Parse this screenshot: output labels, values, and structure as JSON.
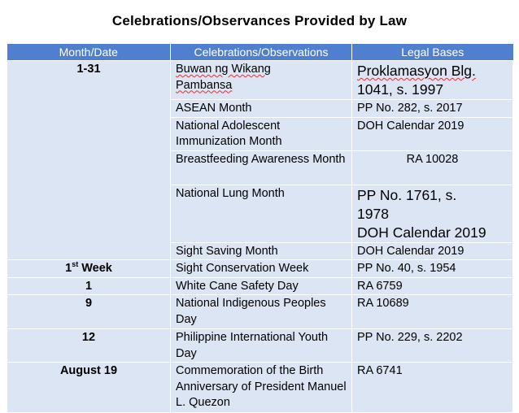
{
  "title": "Celebrations/Observances  Provided by Law",
  "headers": {
    "month_date": "Month/Date",
    "celebrations": "Celebrations/Observations",
    "legal_bases": "Legal Bases"
  },
  "rows": [
    {
      "date": "1-31",
      "celebration_line1": "Buwan ng Wikang",
      "celebration_line2": "Pambansa",
      "basis_line1": "Proklamasyon Blg.",
      "basis_line2": "1041, s. 1997"
    },
    {
      "celebration": "ASEAN Month",
      "basis": "PP No. 282, s. 2017"
    },
    {
      "celebration": "National Adolescent Immunization Month",
      "basis": "DOH Calendar 2019"
    },
    {
      "celebration": "Breastfeeding Awareness Month",
      "basis": "RA 10028"
    },
    {
      "celebration": "National Lung Month",
      "basis_line1": "PP No. 1761, s.",
      "basis_line2": "1978",
      "basis_line3": "DOH Calendar 2019"
    },
    {
      "celebration": "Sight Saving Month",
      "basis": "DOH Calendar 2019"
    },
    {
      "date_num": "1",
      "date_sup": "st",
      "date_rest": " Week",
      "celebration": "Sight Conservation Week",
      "basis": "PP No. 40, s. 1954"
    },
    {
      "date": "1",
      "celebration": "White Cane Safety Day",
      "basis": "RA 6759"
    },
    {
      "date": "9",
      "celebration": "National Indigenous Peoples Day",
      "basis": "RA 10689"
    },
    {
      "date": "12",
      "celebration": "Philippine International Youth Day",
      "basis": "PP No. 229, s. 2202"
    },
    {
      "date": "August 19",
      "celebration": "Commemoration of the Birth Anniversary of President Manuel L. Quezon",
      "basis": "RA 6741"
    }
  ],
  "colors": {
    "header_bg": "#4f7fce",
    "cell_bg": "#dce5f3",
    "spell_underline": "#e03030"
  }
}
